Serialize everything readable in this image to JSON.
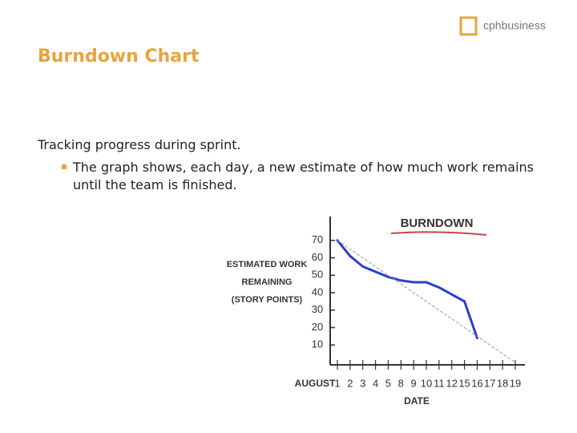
{
  "header": {
    "title": "Burndown Chart",
    "logo": "cphbusiness"
  },
  "body": {
    "lead": "Tracking progress during sprint.",
    "bullets": [
      "The graph shows, each day, a new estimate of how much work remains until the team is finished."
    ]
  },
  "chart_data": {
    "type": "line",
    "title": "BURNDOWN",
    "ylabel": [
      "ESTIMATED WORK",
      "REMAINING",
      "(STORY POINTS)"
    ],
    "xlabel": "DATE",
    "month": "AUGUST",
    "categories": [
      "1",
      "2",
      "3",
      "4",
      "5",
      "8",
      "9",
      "10",
      "11",
      "12",
      "15",
      "16",
      "17",
      "18",
      "19"
    ],
    "series": [
      {
        "color": "#2b3fcc",
        "style": "solid",
        "values": [
          70,
          61,
          55,
          52,
          49,
          47,
          46,
          46,
          43,
          39,
          35,
          14,
          null,
          null,
          null
        ]
      },
      {
        "color": "#999999",
        "style": "dashed",
        "values": [
          70,
          65,
          60,
          55,
          50,
          45,
          40,
          35,
          30,
          25,
          20,
          15,
          10,
          5,
          0
        ]
      }
    ],
    "ylim": [
      0,
      80
    ],
    "yticks": [
      10,
      20,
      30,
      40,
      50,
      60,
      70
    ],
    "grid": false
  }
}
